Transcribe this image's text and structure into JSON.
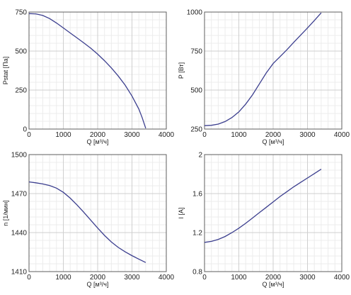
{
  "chart_data": [
    {
      "type": "line",
      "xlabel": "Q [м³/ч]",
      "ylabel": "Pstat [Па]",
      "xlim": [
        0,
        4000
      ],
      "ylim": [
        0,
        750
      ],
      "xticks": [
        "0",
        "1000",
        "2000",
        "3000",
        "4000"
      ],
      "yticks": [
        "0",
        "250",
        "500",
        "750"
      ],
      "grid": true,
      "color": "#3c3f8f",
      "series": [
        {
          "x": [
            0,
            200,
            400,
            600,
            800,
            1000,
            1200,
            1400,
            1600,
            1800,
            2000,
            2200,
            2400,
            2600,
            2800,
            3000,
            3200,
            3300,
            3400
          ],
          "y": [
            740,
            738,
            728,
            708,
            680,
            648,
            616,
            584,
            552,
            518,
            480,
            438,
            392,
            340,
            282,
            212,
            128,
            72,
            5
          ]
        }
      ]
    },
    {
      "type": "line",
      "xlabel": "Q [м³/ч]",
      "ylabel": "P [Вт]",
      "xlim": [
        0,
        4000
      ],
      "ylim": [
        250,
        1000
      ],
      "xticks": [
        "0",
        "1000",
        "2000",
        "3000",
        "4000"
      ],
      "yticks": [
        "250",
        "500",
        "750",
        "1000"
      ],
      "grid": true,
      "color": "#3c3f8f",
      "series": [
        {
          "x": [
            0,
            200,
            400,
            600,
            800,
            1000,
            1200,
            1400,
            1600,
            1800,
            2000,
            2200,
            2400,
            2600,
            2800,
            3000,
            3200,
            3400
          ],
          "y": [
            272,
            274,
            282,
            298,
            324,
            360,
            410,
            470,
            540,
            610,
            670,
            714,
            758,
            806,
            852,
            898,
            946,
            995
          ]
        }
      ]
    },
    {
      "type": "line",
      "xlabel": "Q [м³/ч]",
      "ylabel": "n [1/мин]",
      "xlim": [
        0,
        4000
      ],
      "ylim": [
        1410,
        1500
      ],
      "xticks": [
        "0",
        "1000",
        "2000",
        "3000",
        "4000"
      ],
      "yticks": [
        "1410",
        "1440",
        "1470",
        "1500"
      ],
      "grid": true,
      "color": "#3c3f8f",
      "series": [
        {
          "x": [
            0,
            200,
            400,
            600,
            800,
            1000,
            1200,
            1400,
            1600,
            1800,
            2000,
            2200,
            2400,
            2600,
            2800,
            3000,
            3200,
            3400
          ],
          "y": [
            1479,
            1478.3,
            1477.4,
            1476.2,
            1474.2,
            1471,
            1466.5,
            1461.2,
            1455.5,
            1449.5,
            1443.5,
            1437.8,
            1432.8,
            1428.6,
            1425.2,
            1422.3,
            1419.6,
            1417
          ]
        }
      ]
    },
    {
      "type": "line",
      "xlabel": "Q [м³/ч]",
      "ylabel": "I [A]",
      "xlim": [
        0,
        4000
      ],
      "ylim": [
        0.8,
        2
      ],
      "xticks": [
        "0",
        "1000",
        "2000",
        "3000",
        "4000"
      ],
      "yticks": [
        "0.8",
        "1.2",
        "1.6",
        "2"
      ],
      "grid": true,
      "color": "#3c3f8f",
      "series": [
        {
          "x": [
            0,
            200,
            400,
            600,
            800,
            1000,
            1200,
            1400,
            1600,
            1800,
            2000,
            2200,
            2400,
            2600,
            2800,
            3000,
            3200,
            3400
          ],
          "y": [
            1.1,
            1.11,
            1.13,
            1.16,
            1.2,
            1.245,
            1.295,
            1.35,
            1.405,
            1.46,
            1.515,
            1.57,
            1.62,
            1.67,
            1.715,
            1.76,
            1.805,
            1.85
          ]
        }
      ]
    }
  ]
}
